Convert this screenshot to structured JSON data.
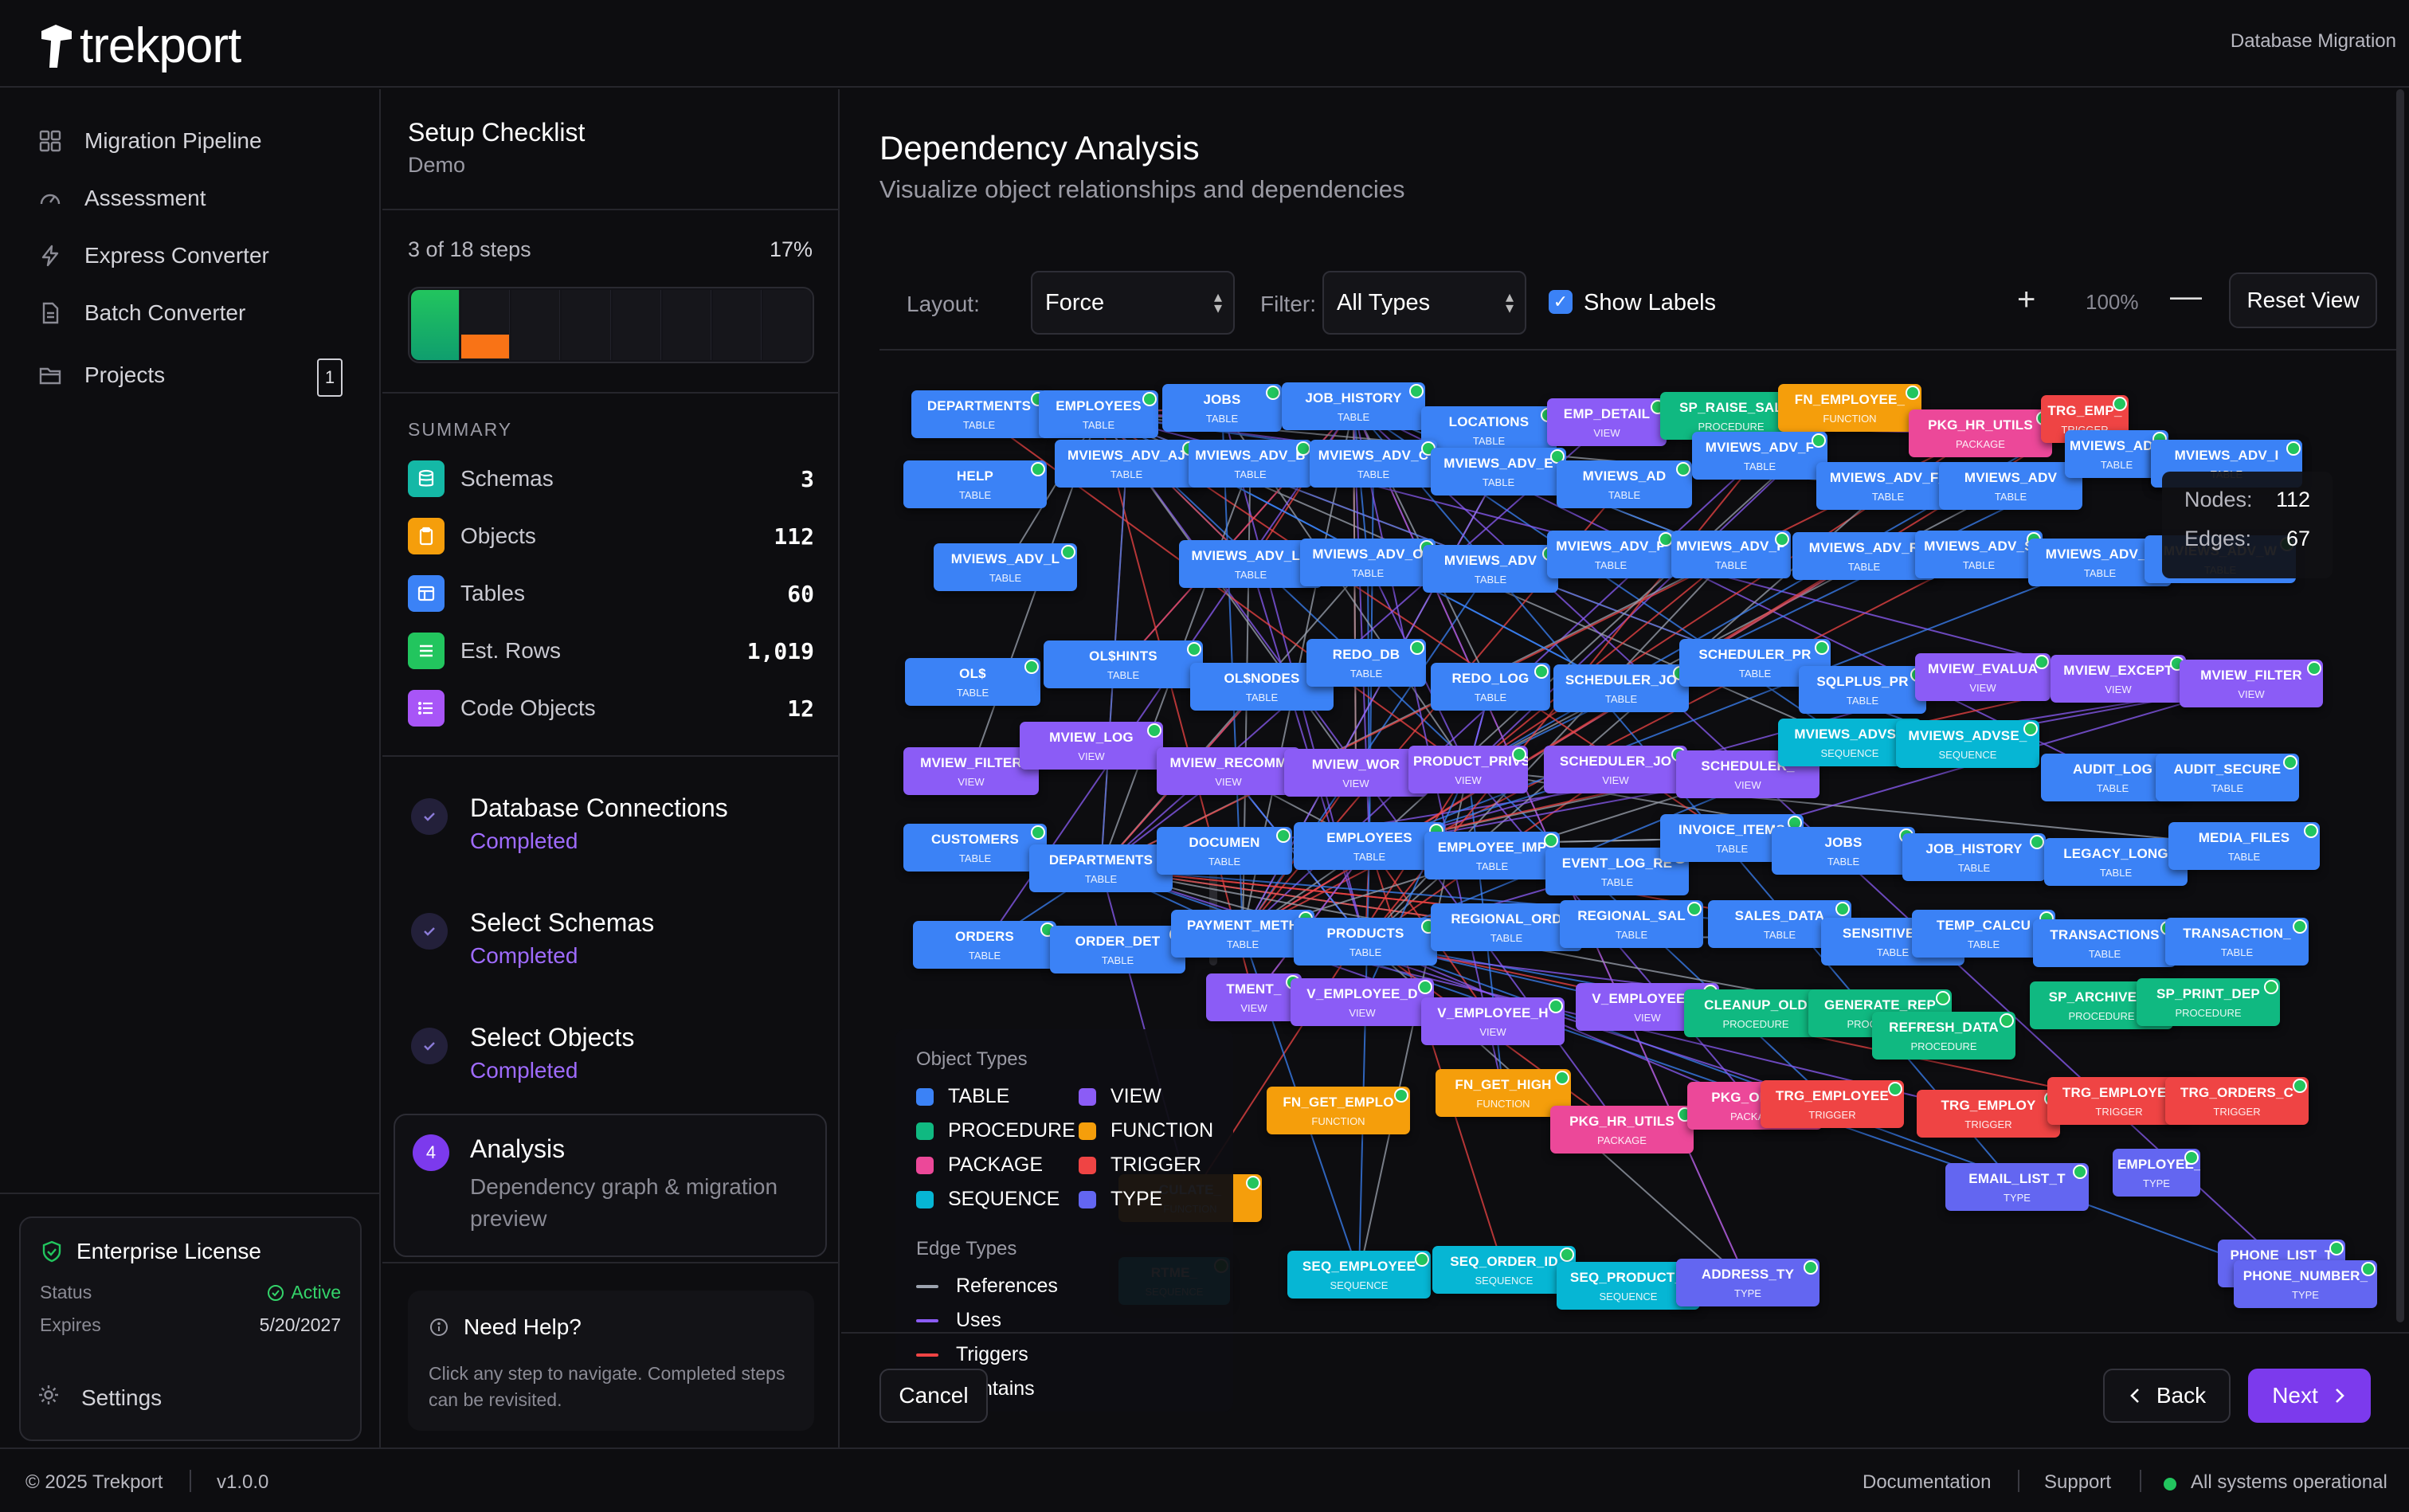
{
  "app": {
    "name": "trekport",
    "context": "Database Migration"
  },
  "sidebar": {
    "items": [
      {
        "label": "Migration Pipeline",
        "icon": "grid-icon"
      },
      {
        "label": "Assessment",
        "icon": "gauge-icon"
      },
      {
        "label": "Express Converter",
        "icon": "bolt-icon"
      },
      {
        "label": "Batch Converter",
        "icon": "document-icon"
      },
      {
        "label": "Projects",
        "icon": "folder-icon",
        "badge": "1"
      }
    ],
    "license": {
      "title": "Enterprise License",
      "status_label": "Status",
      "status": "Active",
      "expires_label": "Expires",
      "expires": "5/20/2027"
    },
    "settings_label": "Settings"
  },
  "checklist": {
    "title": "Setup Checklist",
    "subtitle": "Demo",
    "steps_text": "3 of 18 steps",
    "percent_text": "17%",
    "progress_fraction": 0.17,
    "summary_label": "SUMMARY",
    "summary": [
      {
        "label": "Schemas",
        "value": "3",
        "color": "#14b8a6",
        "icon": "database-icon"
      },
      {
        "label": "Objects",
        "value": "112",
        "color": "#f59e0b",
        "icon": "clipboard-icon"
      },
      {
        "label": "Tables",
        "value": "60",
        "color": "#3b82f6",
        "icon": "table-icon"
      },
      {
        "label": "Est. Rows",
        "value": "1,019",
        "color": "#22c55e",
        "icon": "rows-icon"
      },
      {
        "label": "Code Objects",
        "value": "12",
        "color": "#a855f7",
        "icon": "code-list-icon"
      }
    ],
    "steps": [
      {
        "title": "Database Connections",
        "status": "Completed"
      },
      {
        "title": "Select Schemas",
        "status": "Completed"
      },
      {
        "title": "Select Objects",
        "status": "Completed"
      },
      {
        "number": "4",
        "title": "Analysis",
        "description": "Dependency graph & migration preview"
      }
    ],
    "help": {
      "title": "Need Help?",
      "text": "Click any step to navigate. Completed steps can be revisited."
    }
  },
  "main": {
    "title": "Dependency Analysis",
    "subtitle": "Visualize object relationships and dependencies",
    "toolbar": {
      "layout_label": "Layout:",
      "layout_value": "Force",
      "filter_label": "Filter:",
      "filter_value": "All Types",
      "show_labels": "Show Labels",
      "zoom_in": "+",
      "zoom": "100%",
      "zoom_out": "—",
      "reset": "Reset View"
    },
    "stats": {
      "nodes_label": "Nodes:",
      "nodes": "112",
      "edges_label": "Edges:",
      "edges": "67"
    },
    "legend": {
      "object_types_title": "Object Types",
      "object_types": [
        {
          "label": "TABLE",
          "color": "#3b82f6"
        },
        {
          "label": "VIEW",
          "color": "#8b5cf6"
        },
        {
          "label": "PROCEDURE",
          "color": "#10b981"
        },
        {
          "label": "FUNCTION",
          "color": "#f59e0b"
        },
        {
          "label": "PACKAGE",
          "color": "#ec4899"
        },
        {
          "label": "TRIGGER",
          "color": "#ef4444"
        },
        {
          "label": "SEQUENCE",
          "color": "#06b6d4"
        },
        {
          "label": "TYPE",
          "color": "#6366f1"
        }
      ],
      "edge_types_title": "Edge Types",
      "edge_types": [
        {
          "label": "References",
          "color": "#9ca3af"
        },
        {
          "label": "Uses",
          "color": "#8b5cf6"
        },
        {
          "label": "Triggers",
          "color": "#ef4444"
        },
        {
          "label": "Contains",
          "color": "#3b82f6"
        }
      ]
    },
    "nodes": [
      {
        "label": "DEPARTMENTS",
        "type": "TABLE"
      },
      {
        "label": "EMPLOYEES",
        "type": "TABLE"
      },
      {
        "label": "JOBS",
        "type": "TABLE"
      },
      {
        "label": "JOB_HISTORY",
        "type": "TABLE"
      },
      {
        "label": "LOCATIONS",
        "type": "TABLE"
      },
      {
        "label": "EMP_DETAIL",
        "type": "VIEW"
      },
      {
        "label": "SP_RAISE_SAL",
        "type": "PROCEDURE"
      },
      {
        "label": "FN_EMPLOYEE_",
        "type": "FUNCTION"
      },
      {
        "label": "PKG_HR_UTILS",
        "type": "PACKAGE"
      },
      {
        "label": "TRG_EMP_",
        "type": "TRIGGER"
      },
      {
        "label": "HELP",
        "type": "TABLE"
      },
      {
        "label": "MVIEWS_ADV_AJ",
        "type": "TABLE"
      },
      {
        "label": "MVIEWS_ADV_B",
        "type": "TABLE"
      },
      {
        "label": "MVIEWS_ADV_C",
        "type": "TABLE"
      },
      {
        "label": "MVIEWS_ADV_E",
        "type": "TABLE"
      },
      {
        "label": "MVIEWS_AD",
        "type": "TABLE"
      },
      {
        "label": "MVIEWS_ADV_F",
        "type": "TABLE"
      },
      {
        "label": "MVIEWS_ADV_F_",
        "type": "TABLE"
      },
      {
        "label": "MVIEWS_ADV",
        "type": "TABLE"
      },
      {
        "label": "MVIEWS_ADV_GC",
        "type": "TABLE"
      },
      {
        "label": "MVIEWS_ADV_I",
        "type": "TABLE"
      },
      {
        "label": "MVIEWS_ADV_I",
        "type": "TABLE"
      },
      {
        "label": "MVIEWS_ADV_L",
        "type": "TABLE"
      },
      {
        "label": "MVIEWS_ADV_LC",
        "type": "TABLE"
      },
      {
        "label": "MVIEWS_ADV_O",
        "type": "TABLE"
      },
      {
        "label": "MVIEWS_ADV",
        "type": "TABLE"
      },
      {
        "label": "MVIEWS_ADV_P",
        "type": "TABLE"
      },
      {
        "label": "MVIEWS_ADV_P",
        "type": "TABLE"
      },
      {
        "label": "MVIEWS_ADV_R",
        "type": "TABLE"
      },
      {
        "label": "MVIEWS_ADV_S",
        "type": "TABLE"
      },
      {
        "label": "MVIEWS_ADV_T",
        "type": "TABLE"
      },
      {
        "label": "MVIEWS_ADV_W",
        "type": "TABLE"
      },
      {
        "label": "OL$",
        "type": "TABLE"
      },
      {
        "label": "OL$HINTS",
        "type": "TABLE"
      },
      {
        "label": "OL$NODES",
        "type": "TABLE"
      },
      {
        "label": "REDO_DB",
        "type": "TABLE"
      },
      {
        "label": "REDO_LOG",
        "type": "TABLE"
      },
      {
        "label": "SCHEDULER_JO",
        "type": "TABLE"
      },
      {
        "label": "SCHEDULER_PR",
        "type": "TABLE"
      },
      {
        "label": "SQLPLUS_PR",
        "type": "TABLE"
      },
      {
        "label": "MVIEW_EVALUA",
        "type": "VIEW"
      },
      {
        "label": "MVIEW_EXCEPT",
        "type": "VIEW"
      },
      {
        "label": "MVIEW_FILTER",
        "type": "VIEW"
      },
      {
        "label": "MVIEW_FILTER",
        "type": "VIEW"
      },
      {
        "label": "MVIEW_LOG",
        "type": "VIEW"
      },
      {
        "label": "MVIEW_RECOMM",
        "type": "VIEW"
      },
      {
        "label": "MVIEW_WOR",
        "type": "VIEW"
      },
      {
        "label": "PRODUCT_PRIVS",
        "type": "VIEW"
      },
      {
        "label": "SCHEDULER_JO",
        "type": "VIEW"
      },
      {
        "label": "SCHEDULER_",
        "type": "VIEW"
      },
      {
        "label": "MVIEWS_ADVSE",
        "type": "SEQUENCE"
      },
      {
        "label": "MVIEWS_ADVSE_",
        "type": "SEQUENCE"
      },
      {
        "label": "AUDIT_LOG",
        "type": "TABLE"
      },
      {
        "label": "AUDIT_SECURE",
        "type": "TABLE"
      },
      {
        "label": "CUSTOMERS",
        "type": "TABLE"
      },
      {
        "label": "DEPARTMENTS",
        "type": "TABLE"
      },
      {
        "label": "DOCUMEN",
        "type": "TABLE"
      },
      {
        "label": "EMPLOYEES",
        "type": "TABLE"
      },
      {
        "label": "EMPLOYEE_IMP",
        "type": "TABLE"
      },
      {
        "label": "EVENT_LOG_RE",
        "type": "TABLE"
      },
      {
        "label": "INVOICE_ITEMS",
        "type": "TABLE"
      },
      {
        "label": "JOBS",
        "type": "TABLE"
      },
      {
        "label": "JOB_HISTORY",
        "type": "TABLE"
      },
      {
        "label": "LEGACY_LONG",
        "type": "TABLE"
      },
      {
        "label": "MEDIA_FILES",
        "type": "TABLE"
      },
      {
        "label": "ORDERS",
        "type": "TABLE"
      },
      {
        "label": "ORDER_DET",
        "type": "TABLE"
      },
      {
        "label": "PAYMENT_METH",
        "type": "TABLE"
      },
      {
        "label": "PRODUCTS",
        "type": "TABLE"
      },
      {
        "label": "REGIONAL_ORD",
        "type": "TABLE"
      },
      {
        "label": "REGIONAL_SAL",
        "type": "TABLE"
      },
      {
        "label": "SALES_DATA",
        "type": "TABLE"
      },
      {
        "label": "SENSITIVE_EM",
        "type": "TABLE"
      },
      {
        "label": "TEMP_CALCU",
        "type": "TABLE"
      },
      {
        "label": "TRANSACTIONS",
        "type": "TABLE"
      },
      {
        "label": "TRANSACTION_",
        "type": "TABLE"
      },
      {
        "label": "TMENT_",
        "type": "VIEW"
      },
      {
        "label": "V_EMPLOYEE_D",
        "type": "VIEW"
      },
      {
        "label": "V_EMPLOYEE_H",
        "type": "VIEW"
      },
      {
        "label": "V_EMPLOYEE_R",
        "type": "VIEW"
      },
      {
        "label": "CLEANUP_OLD",
        "type": "PROCEDURE"
      },
      {
        "label": "GENERATE_REP",
        "type": "PROCEDURE"
      },
      {
        "label": "REFRESH_DATA",
        "type": "PROCEDURE"
      },
      {
        "label": "SP_ARCHIVE_C",
        "type": "PROCEDURE"
      },
      {
        "label": "SP_PRINT_DEP",
        "type": "PROCEDURE"
      },
      {
        "label": "FN_GET_HIGH",
        "type": "FUNCTION"
      },
      {
        "label": "CULATE_",
        "type": "FUNCTION"
      },
      {
        "label": "FN_GET_EMPLO",
        "type": "FUNCTION"
      },
      {
        "label": "PKG_HR_UTILS",
        "type": "PACKAGE"
      },
      {
        "label": "PKG_ORDER",
        "type": "PACKAGE"
      },
      {
        "label": "TRG_EMPLOYEE",
        "type": "TRIGGER"
      },
      {
        "label": "TRG_EMPLOY",
        "type": "TRIGGER"
      },
      {
        "label": "TRG_EMPLOYEE",
        "type": "TRIGGER"
      },
      {
        "label": "TRG_ORDERS_C",
        "type": "TRIGGER"
      },
      {
        "label": "RTME_",
        "type": "SEQUENCE"
      },
      {
        "label": "SEQ_EMPLOYEE",
        "type": "SEQUENCE"
      },
      {
        "label": "SEQ_ORDER_ID",
        "type": "SEQUENCE"
      },
      {
        "label": "SEQ_PRODUCT_I",
        "type": "SEQUENCE"
      },
      {
        "label": "ADDRESS_TY",
        "type": "TYPE"
      },
      {
        "label": "EMAIL_LIST_T",
        "type": "TYPE"
      },
      {
        "label": "EMPLOYEE_",
        "type": "TYPE"
      },
      {
        "label": "PHONE_LIST_T",
        "type": "TYPE"
      },
      {
        "label": "PHONE_NUMBER_",
        "type": "TYPE"
      }
    ],
    "actions": {
      "cancel": "Cancel",
      "back": "Back",
      "next": "Next"
    }
  },
  "footer": {
    "copyright": "© 2025 Trekport",
    "version": "v1.0.0",
    "links": [
      "Documentation",
      "Support"
    ],
    "status": "All systems operational"
  }
}
